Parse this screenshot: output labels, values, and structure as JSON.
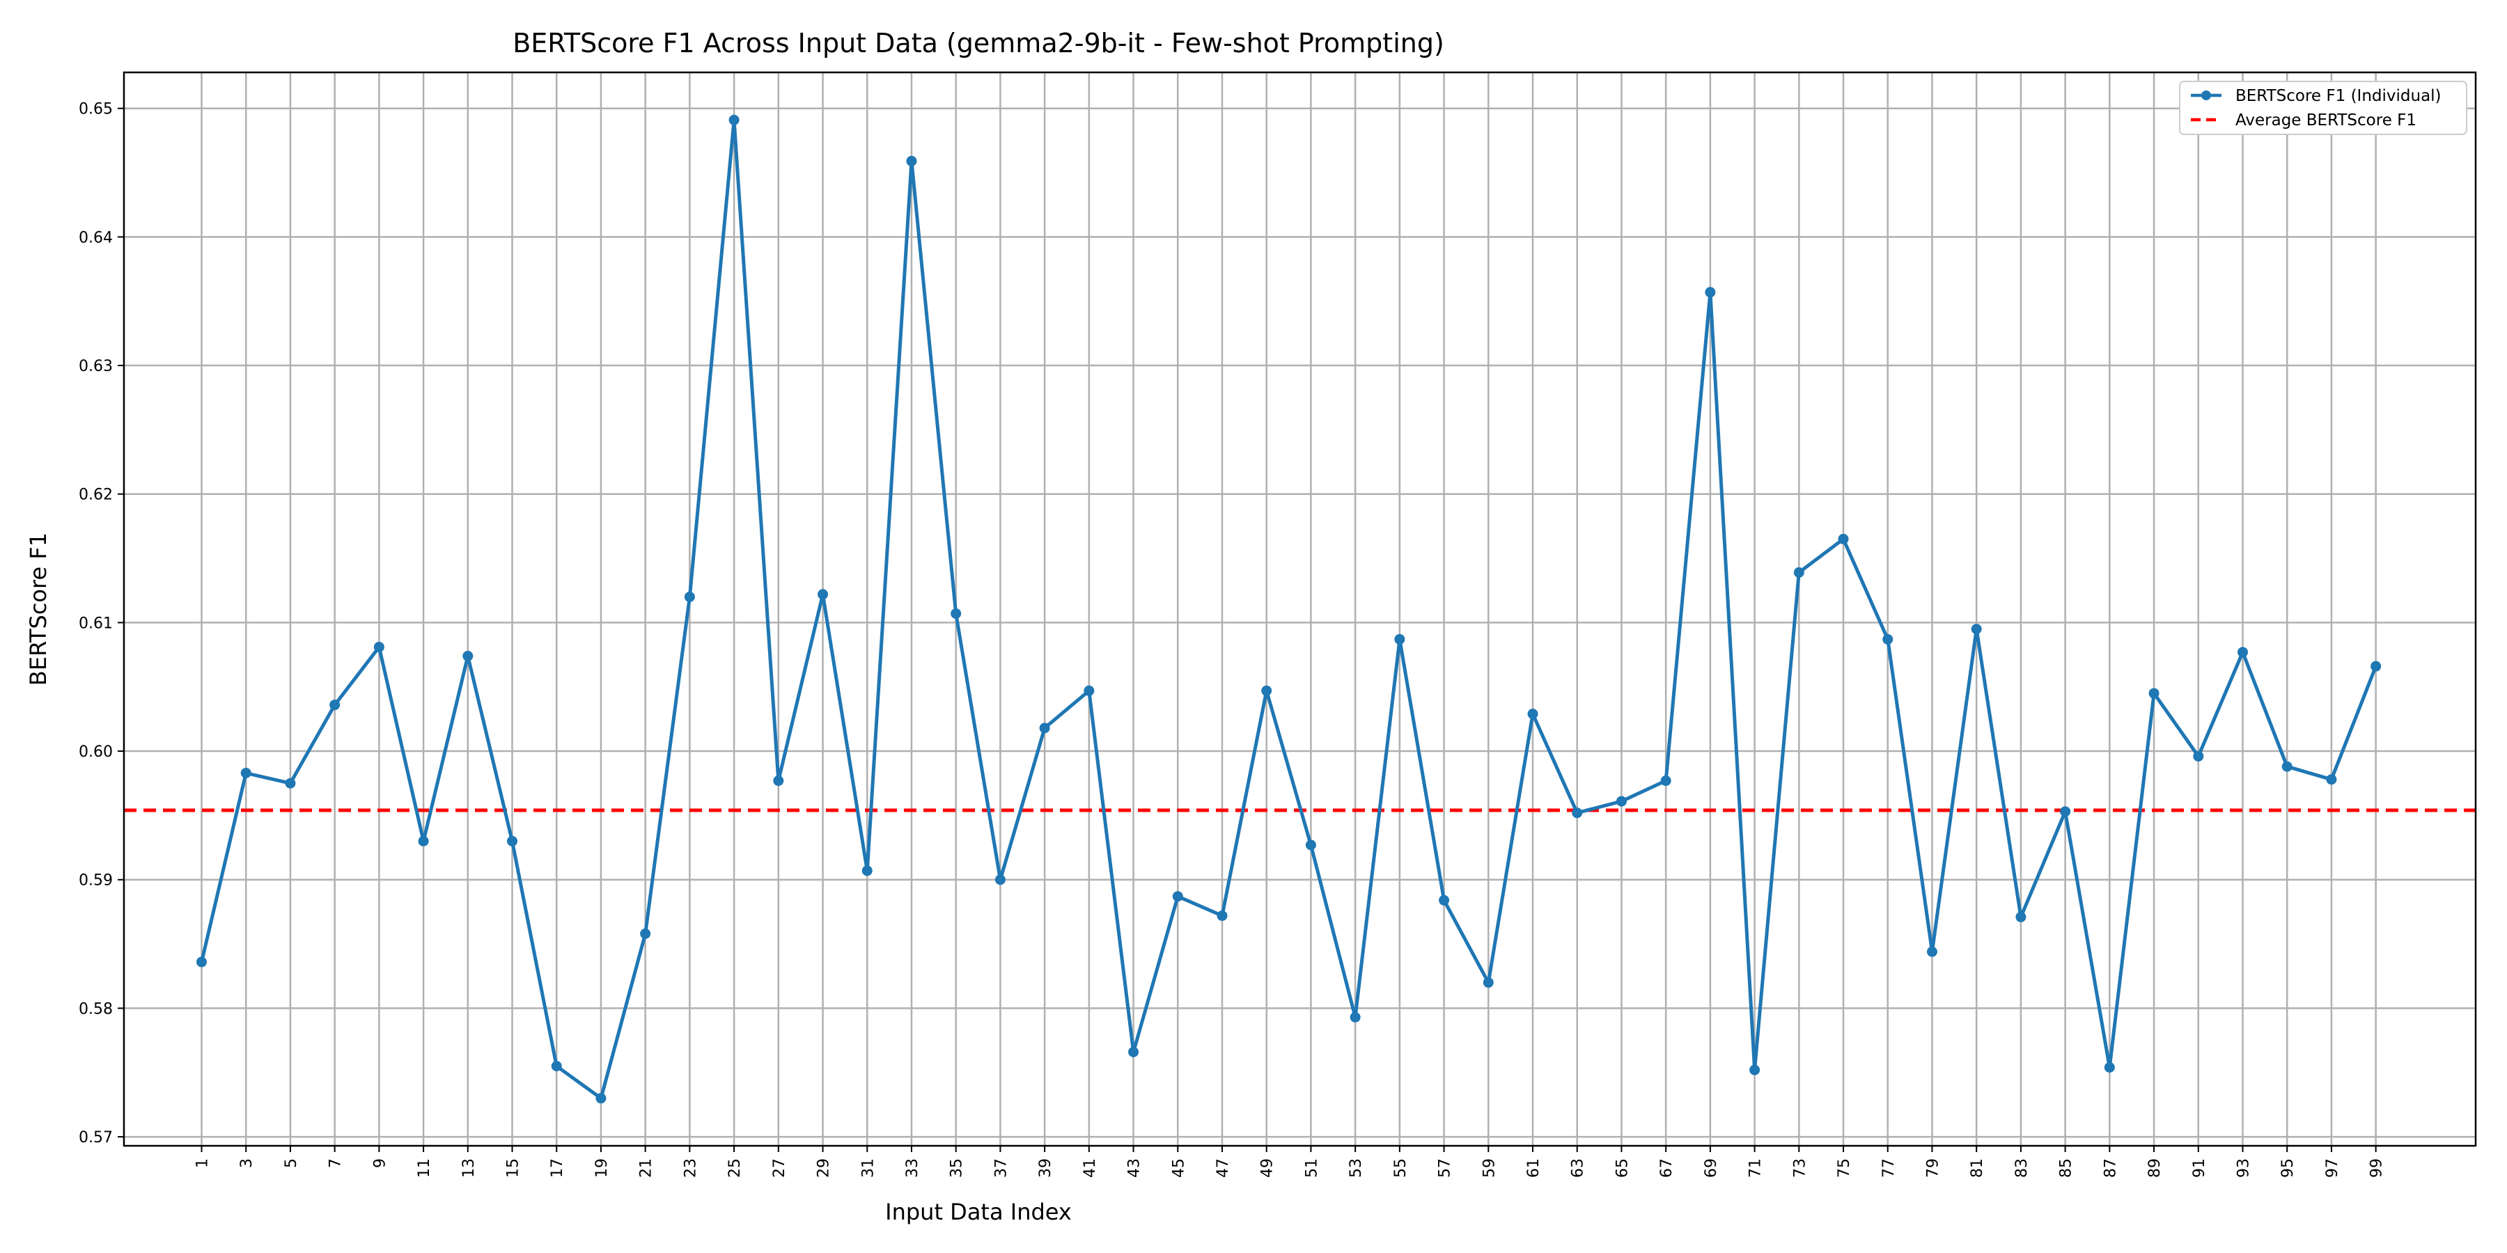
{
  "chart_data": {
    "type": "line",
    "title": "BERTScore F1 Across Input Data (gemma2-9b-it - Few-shot Prompting)",
    "xlabel": "Input Data Index",
    "ylabel": "BERTScore F1",
    "xlim": [
      -2.5,
      103.5
    ],
    "ylim": [
      0.5693,
      0.6528
    ],
    "x_ticks": [
      1,
      3,
      5,
      7,
      9,
      11,
      13,
      15,
      17,
      19,
      21,
      23,
      25,
      27,
      29,
      31,
      33,
      35,
      37,
      39,
      41,
      43,
      45,
      47,
      49,
      51,
      53,
      55,
      57,
      59,
      61,
      63,
      65,
      67,
      69,
      71,
      73,
      75,
      77,
      79,
      81,
      83,
      85,
      87,
      89,
      91,
      93,
      95,
      97,
      99
    ],
    "x_tick_labels": [
      "1",
      "3",
      "5",
      "7",
      "9",
      "11",
      "13",
      "15",
      "17",
      "19",
      "21",
      "23",
      "25",
      "27",
      "29",
      "31",
      "33",
      "35",
      "37",
      "39",
      "41",
      "43",
      "45",
      "47",
      "49",
      "51",
      "53",
      "55",
      "57",
      "59",
      "61",
      "63",
      "65",
      "67",
      "69",
      "71",
      "73",
      "75",
      "77",
      "79",
      "81",
      "83",
      "85",
      "87",
      "89",
      "91",
      "93",
      "95",
      "97",
      "99"
    ],
    "y_ticks": [
      0.57,
      0.58,
      0.59,
      0.6,
      0.61,
      0.62,
      0.63,
      0.64,
      0.65
    ],
    "y_tick_labels": [
      "0.57",
      "0.58",
      "0.59",
      "0.60",
      "0.61",
      "0.62",
      "0.63",
      "0.64",
      "0.65"
    ],
    "grid": true,
    "legend_position": "top-right",
    "series": [
      {
        "name": "BERTScore F1 (Individual)",
        "color": "#1f77b4",
        "style": "solid-with-markers",
        "x": [
          1,
          3,
          5,
          7,
          9,
          11,
          13,
          15,
          17,
          19,
          21,
          23,
          25,
          27,
          29,
          31,
          33,
          35,
          37,
          39,
          41,
          43,
          45,
          47,
          49,
          51,
          53,
          55,
          57,
          59,
          61,
          63,
          65,
          67,
          69,
          71,
          73,
          75,
          77,
          79,
          81,
          83,
          85,
          87,
          89,
          91,
          93,
          95,
          97,
          99
        ],
        "values": [
          0.5836,
          0.5983,
          0.5975,
          0.6036,
          0.6081,
          0.593,
          0.6074,
          0.593,
          0.5755,
          0.573,
          0.5858,
          0.612,
          0.6491,
          0.5977,
          0.6122,
          0.5907,
          0.6459,
          0.6107,
          0.59,
          0.6018,
          0.6047,
          0.5766,
          0.5887,
          0.5872,
          0.6047,
          0.5927,
          0.5793,
          0.6087,
          0.5884,
          0.582,
          0.6029,
          0.5952,
          0.5961,
          0.5977,
          0.6357,
          0.5752,
          0.6139,
          0.6165,
          0.6087,
          0.5844,
          0.6095,
          0.5871,
          0.5953,
          0.5754,
          0.6045,
          0.5996,
          0.6077,
          0.5988,
          0.5978,
          0.6066
        ]
      },
      {
        "name": "Average BERTScore F1",
        "color": "#ff0000",
        "style": "dashed",
        "value": 0.5954
      }
    ]
  }
}
